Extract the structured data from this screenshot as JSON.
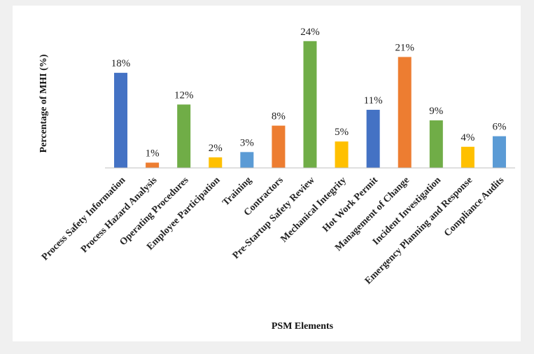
{
  "chart_data": {
    "type": "bar",
    "xlabel": "PSM Elements",
    "ylabel": "Percentage of MHI (%)",
    "ylim": [
      0,
      25
    ],
    "grid": false,
    "categories": [
      "Process Safety Information",
      "Process Hazard Analysis",
      "Operating Procedures",
      "Employee Participation",
      "Training",
      "Contractors",
      "Pre-Startup Safety Review",
      "Mechanical Integrity",
      "Hot Work Permit",
      "Management of Change",
      "Incident Investigation",
      "Emergency Planning and Response",
      "Compliance Audits"
    ],
    "values": [
      18,
      1,
      12,
      2,
      3,
      8,
      24,
      5,
      11,
      21,
      9,
      4,
      6
    ],
    "value_labels": [
      "18%",
      "1%",
      "12%",
      "2%",
      "3%",
      "8%",
      "24%",
      "5%",
      "11%",
      "21%",
      "9%",
      "4%",
      "6%"
    ],
    "colors": [
      "#4472c4",
      "#ed7d31",
      "#70ad47",
      "#ffc000",
      "#5b9bd5",
      "#ed7d31",
      "#70ad47",
      "#ffc000",
      "#4472c4",
      "#ed7d31",
      "#70ad47",
      "#ffc000",
      "#5b9bd5"
    ]
  }
}
